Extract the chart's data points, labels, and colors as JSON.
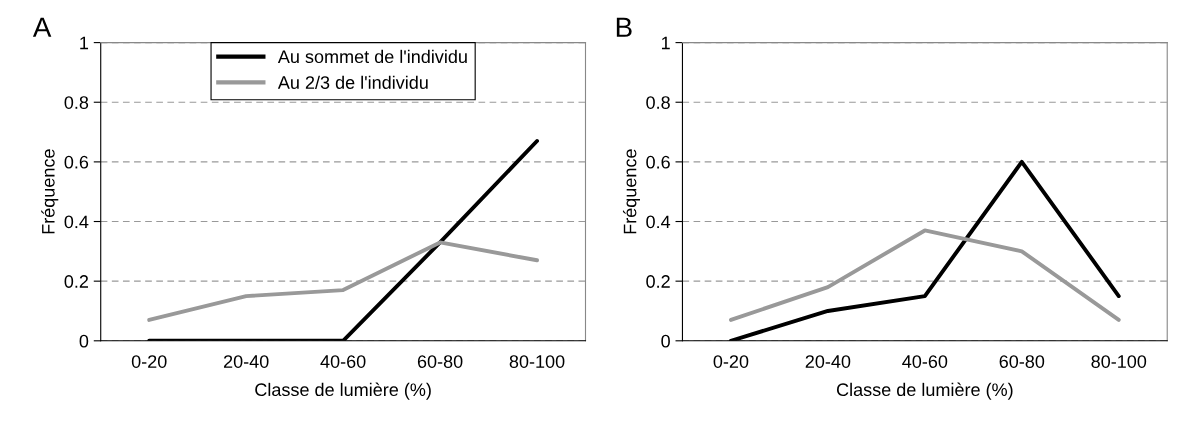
{
  "chart_data": [
    {
      "type": "line",
      "title": "A",
      "xlabel": "Classe de lumière (%)",
      "ylabel": "Fréquence",
      "categories": [
        "0-20",
        "20-40",
        "40-60",
        "60-80",
        "80-100"
      ],
      "ylim": [
        0,
        1
      ],
      "yticks": [
        0,
        0.2,
        0.4,
        0.6,
        0.8,
        1
      ],
      "grid": "y",
      "legend": "top",
      "line_style": "solid",
      "series": [
        {
          "name": "Au sommet de l'individu",
          "color": "#000000",
          "values": [
            0,
            0,
            0,
            0.33,
            0.67
          ]
        },
        {
          "name": "Au 2/3 de l'individu",
          "color": "#999999",
          "values": [
            0.07,
            0.15,
            0.17,
            0.33,
            0.27
          ]
        }
      ]
    },
    {
      "type": "line",
      "title": "B",
      "xlabel": "Classe de lumière (%)",
      "ylabel": "Fréquence",
      "categories": [
        "0-20",
        "20-40",
        "40-60",
        "60-80",
        "80-100"
      ],
      "ylim": [
        0,
        1
      ],
      "yticks": [
        0,
        0.2,
        0.4,
        0.6,
        0.8,
        1
      ],
      "grid": "y",
      "line_style": "solid",
      "series": [
        {
          "color": "#000000",
          "values": [
            0,
            0.1,
            0.15,
            0.6,
            0.15
          ]
        },
        {
          "color": "#999999",
          "values": [
            0.07,
            0.18,
            0.37,
            0.3,
            0.07
          ]
        }
      ]
    }
  ]
}
